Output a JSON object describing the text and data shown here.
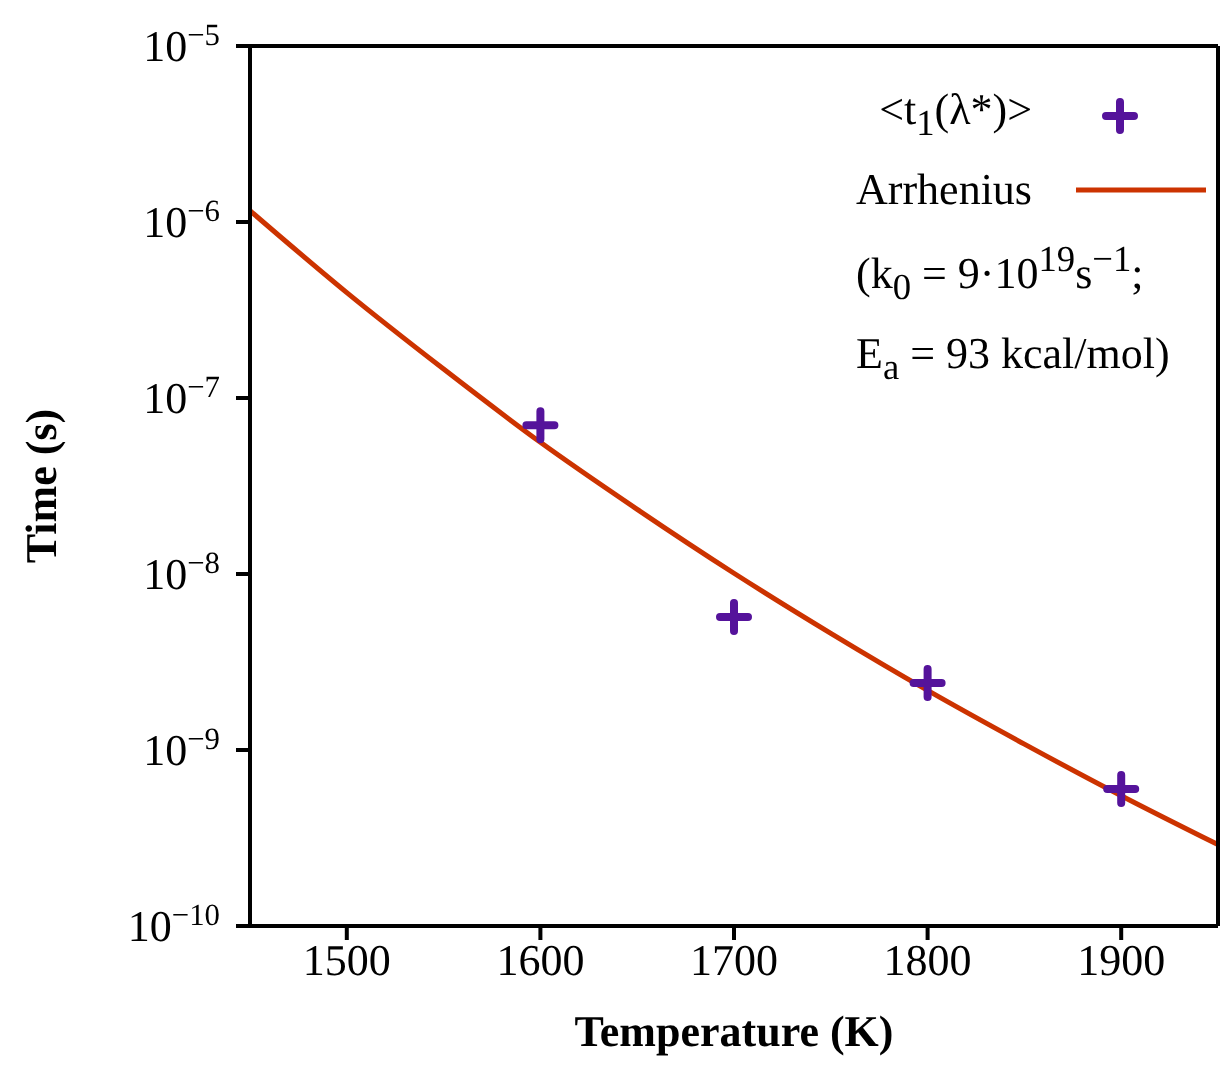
{
  "chart_data": {
    "type": "line",
    "xlabel": "Temperature (K)",
    "ylabel": "Time (s)",
    "xlim": [
      1450,
      1950
    ],
    "xticks": [
      1500,
      1600,
      1700,
      1800,
      1900
    ],
    "ylim": [
      1e-10,
      1e-05
    ],
    "log": "y",
    "yticks": [
      {
        "value": 1e-10,
        "label": "10$^{−10}$"
      },
      {
        "value": 1e-09,
        "label": "10$^{−9}$"
      },
      {
        "value": 1e-08,
        "label": "10$^{−8}$"
      },
      {
        "value": 1e-07,
        "label": "10$^{−7}$"
      },
      {
        "value": 1e-06,
        "label": "10$^{−6}$"
      },
      {
        "value": 1e-05,
        "label": "10$^{−5}$"
      }
    ],
    "grid": false,
    "legend": "top right",
    "annotations": [
      "(k$_{0}$ = 9·10$^{19}$s$^{−1}$;",
      "E$_{a}$ = 93 kcal/mol)"
    ],
    "series": [
      {
        "name": "<t$_{1}$(λ*)>",
        "type": "scatter",
        "marker": "cross",
        "color": "#55139b",
        "x": [
          1600,
          1700,
          1800,
          1900
        ],
        "values": [
          7e-08,
          5.7e-09,
          2.4e-09,
          6e-10
        ]
      },
      {
        "name": "Arrhenius",
        "type": "line",
        "marker": "none",
        "line_style": "solid",
        "color": "#cc3300",
        "x": [
          1450,
          1500,
          1550,
          1600,
          1650,
          1700,
          1750,
          1800,
          1850,
          1900,
          1950
        ],
        "values": [
          1.16e-06,
          3.97e-07,
          1.46e-07,
          5.6e-08,
          2.33e-08,
          1.01e-08,
          4.6e-09,
          2.18e-09,
          1.08e-09,
          5.5e-10,
          2.9e-10
        ]
      }
    ]
  }
}
